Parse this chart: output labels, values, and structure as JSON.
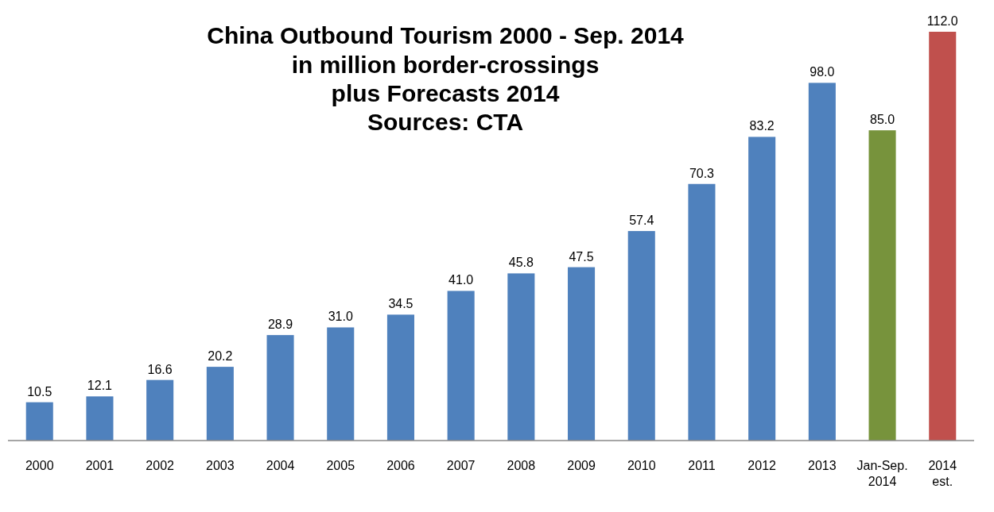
{
  "chart_data": {
    "type": "bar",
    "title": "China Outbound Tourism 2000 - Sep. 2014",
    "subtitle": "in million border-crossings\nplus Forecasts 2014\nSources: CTA",
    "categories": [
      "2000",
      "2001",
      "2002",
      "2003",
      "2004",
      "2005",
      "2006",
      "2007",
      "2008",
      "2009",
      "2010",
      "2011",
      "2012",
      "2013",
      "Jan-Sep. 2014",
      "2014 est."
    ],
    "values": [
      10.5,
      12.1,
      16.6,
      20.2,
      28.9,
      31.0,
      34.5,
      41.0,
      45.8,
      47.5,
      57.4,
      70.3,
      83.2,
      98.0,
      85.0,
      112.0
    ],
    "value_labels": [
      "10.5",
      "12.1",
      "16.6",
      "20.2",
      "28.9",
      "31.0",
      "34.5",
      "41.0",
      "45.8",
      "47.5",
      "57.4",
      "70.3",
      "83.2",
      "98.0",
      "85.0",
      "112.0"
    ],
    "colors": [
      "#4f81bd",
      "#4f81bd",
      "#4f81bd",
      "#4f81bd",
      "#4f81bd",
      "#4f81bd",
      "#4f81bd",
      "#4f81bd",
      "#4f81bd",
      "#4f81bd",
      "#4f81bd",
      "#4f81bd",
      "#4f81bd",
      "#4f81bd",
      "#77933c",
      "#c0504d"
    ]
  }
}
